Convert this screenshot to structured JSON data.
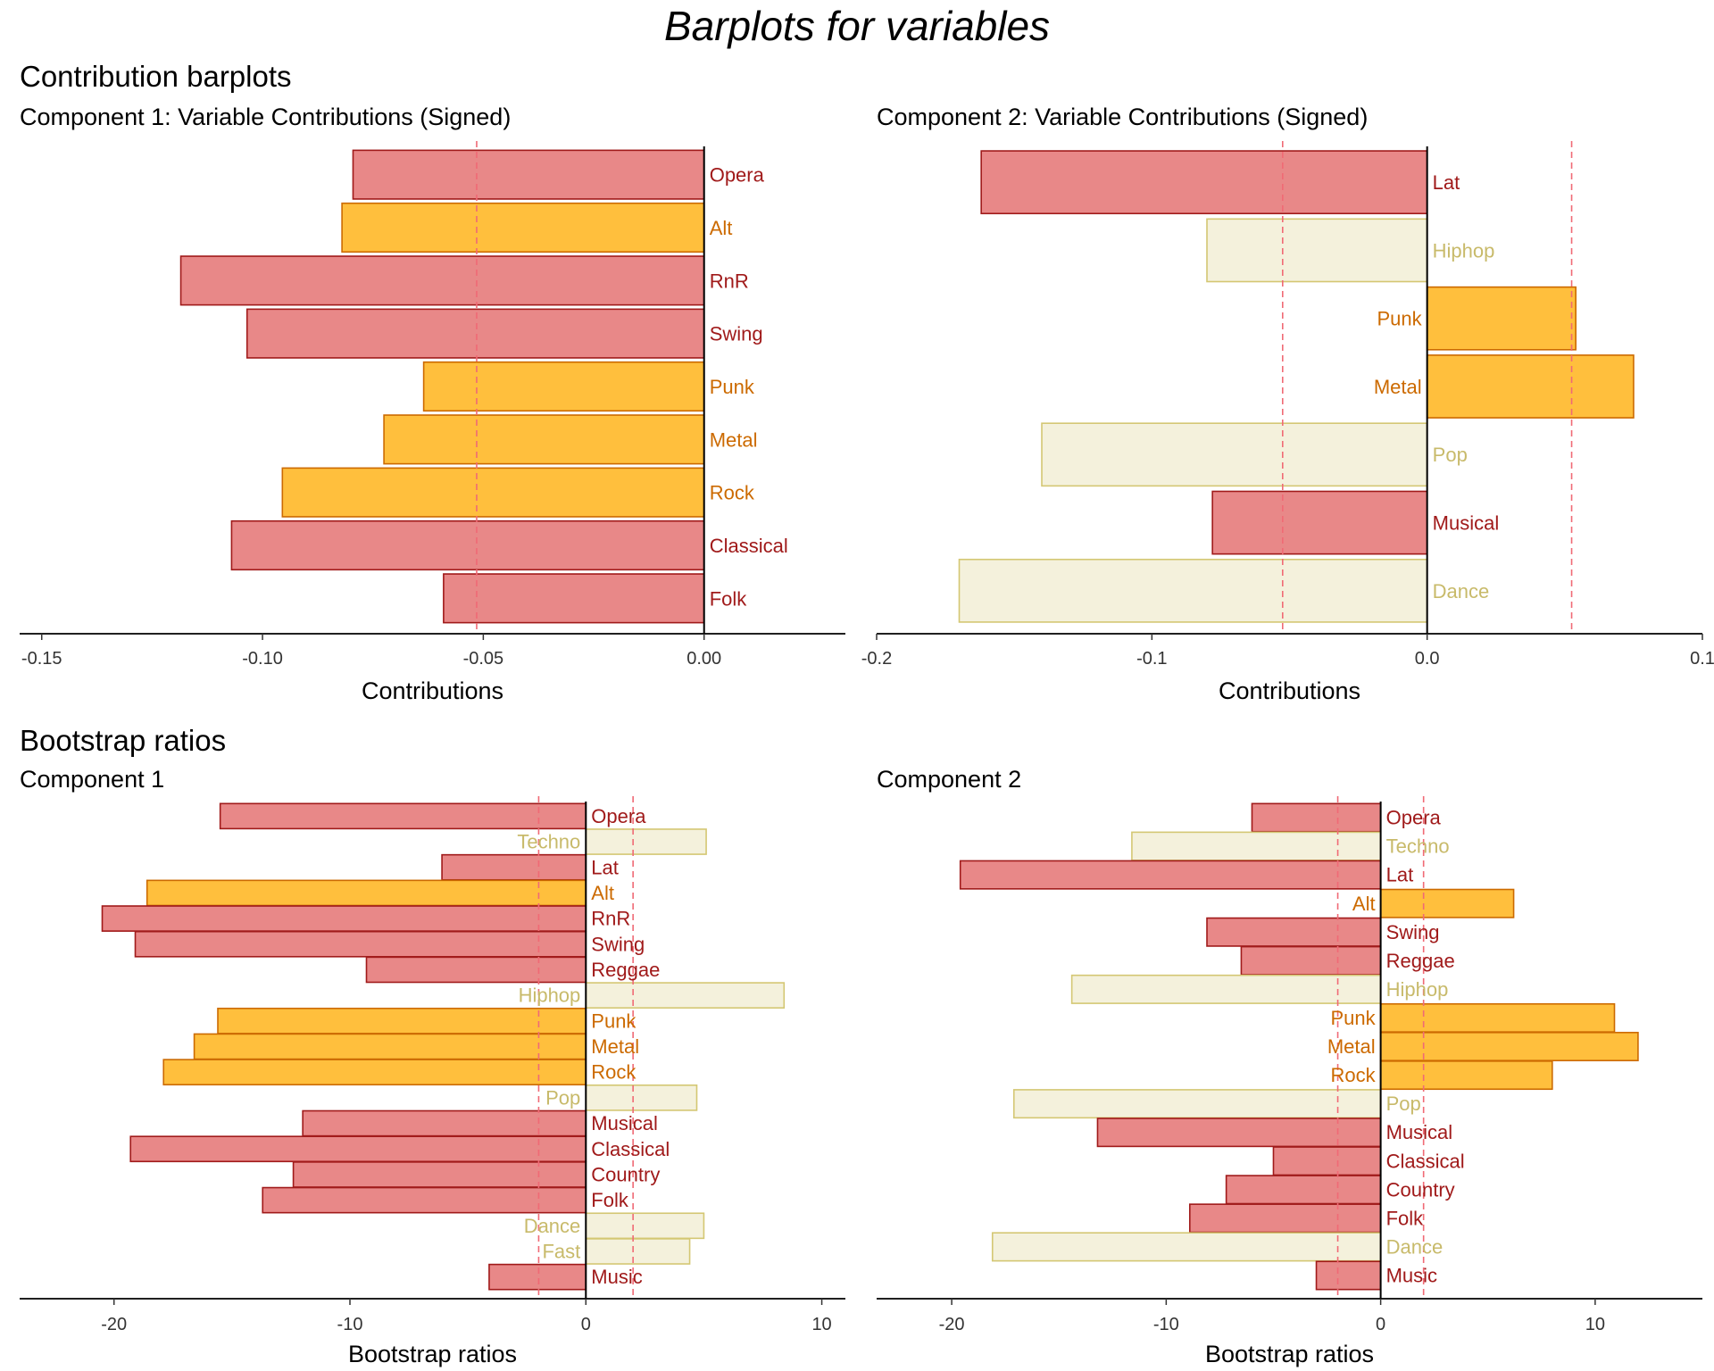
{
  "title": "Barplots for variables",
  "sections": {
    "contribution": "Contribution barplots",
    "bootstrap": "Bootstrap ratios"
  },
  "colors": {
    "negative_fill": "#E88888",
    "negative_stroke": "#A01A1A",
    "negative_text": "#A01A1A",
    "positive_fill": "#FFBF3D",
    "positive_stroke": "#CC6A00",
    "positive_text": "#CC6A00",
    "neutral_fill": "#F4F1DC",
    "neutral_stroke": "#D4C773",
    "neutral_text": "#C8BA6A",
    "threshold": "#F06A75"
  },
  "chart_data": [
    {
      "id": "c1",
      "type": "bar",
      "orientation": "horizontal",
      "title": "Component 1: Variable Contributions (Signed)",
      "xlabel": "Contributions",
      "xlim": [
        -0.155,
        0.032
      ],
      "xticks": [
        -0.15,
        -0.1,
        -0.05,
        0.0
      ],
      "tick_labels": [
        "-0.15",
        "-0.10",
        "-0.05",
        "0.00"
      ],
      "thresholds": [
        -0.0515
      ],
      "categories": [
        "Opera",
        "Alt",
        "RnR",
        "Swing",
        "Punk",
        "Metal",
        "Rock",
        "Classical",
        "Folk"
      ],
      "values": [
        -0.0795,
        -0.082,
        -0.1185,
        -0.1035,
        -0.0635,
        -0.0725,
        -0.0955,
        -0.107,
        -0.059
      ],
      "groups": [
        "negative",
        "positive",
        "negative",
        "negative",
        "positive",
        "positive",
        "positive",
        "negative",
        "negative"
      ]
    },
    {
      "id": "c2",
      "type": "bar",
      "orientation": "horizontal",
      "title": "Component 2: Variable Contributions (Signed)",
      "xlabel": "Contributions",
      "xlim": [
        -0.2,
        0.1
      ],
      "xticks": [
        -0.2,
        -0.1,
        0.0,
        0.1
      ],
      "tick_labels": [
        "-0.2",
        "-0.1",
        "0.0",
        "0.1"
      ],
      "thresholds": [
        -0.0525,
        0.0525
      ],
      "categories": [
        "Lat",
        "Hiphop",
        "Punk",
        "Metal",
        "Pop",
        "Musical",
        "Dance"
      ],
      "values": [
        -0.162,
        -0.08,
        0.054,
        0.075,
        -0.14,
        -0.078,
        -0.17
      ],
      "groups": [
        "negative",
        "neutral",
        "positive",
        "positive",
        "neutral",
        "negative",
        "neutral"
      ]
    },
    {
      "id": "b1",
      "type": "bar",
      "orientation": "horizontal",
      "title": "Component 1",
      "xlabel": "Bootstrap ratios",
      "xlim": [
        -24,
        11
      ],
      "xticks": [
        -20,
        -10,
        0,
        10
      ],
      "tick_labels": [
        "-20",
        "-10",
        "0",
        "10"
      ],
      "thresholds": [
        -2,
        2
      ],
      "categories": [
        "Opera",
        "Techno",
        "Lat",
        "Alt",
        "RnR",
        "Swing",
        "Reggae",
        "Hiphop",
        "Punk",
        "Metal",
        "Rock",
        "Pop",
        "Musical",
        "Classical",
        "Country",
        "Folk",
        "Dance",
        "Fast",
        "Music"
      ],
      "values": [
        -15.5,
        5.1,
        -6.1,
        -18.6,
        -20.5,
        -19.1,
        -9.3,
        8.4,
        -15.6,
        -16.6,
        -17.9,
        4.7,
        -12.0,
        -19.3,
        -12.4,
        -13.7,
        5.0,
        4.4,
        -4.1
      ],
      "groups": [
        "negative",
        "neutral",
        "negative",
        "positive",
        "negative",
        "negative",
        "negative",
        "neutral",
        "positive",
        "positive",
        "positive",
        "neutral",
        "negative",
        "negative",
        "negative",
        "negative",
        "neutral",
        "neutral",
        "negative"
      ]
    },
    {
      "id": "b2",
      "type": "bar",
      "orientation": "horizontal",
      "title": "Component 2",
      "xlabel": "Bootstrap ratios",
      "xlim": [
        -23.5,
        15
      ],
      "xticks": [
        -20,
        -10,
        0,
        10
      ],
      "tick_labels": [
        "-20",
        "-10",
        "0",
        "10"
      ],
      "thresholds": [
        -2,
        2
      ],
      "categories": [
        "Opera",
        "Techno",
        "Lat",
        "Alt",
        "Swing",
        "Reggae",
        "Hiphop",
        "Punk",
        "Metal",
        "Rock",
        "Pop",
        "Musical",
        "Classical",
        "Country",
        "Folk",
        "Dance",
        "Music"
      ],
      "values": [
        -6.0,
        -11.6,
        -19.6,
        6.2,
        -8.1,
        -6.5,
        -14.4,
        10.9,
        12.0,
        8.0,
        -17.1,
        -13.2,
        -5.0,
        -7.2,
        -8.9,
        -18.1,
        -3.0
      ],
      "groups": [
        "negative",
        "neutral",
        "negative",
        "positive",
        "negative",
        "negative",
        "neutral",
        "positive",
        "positive",
        "positive",
        "neutral",
        "negative",
        "negative",
        "negative",
        "negative",
        "neutral",
        "negative"
      ]
    }
  ]
}
